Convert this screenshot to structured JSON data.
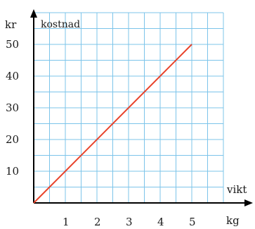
{
  "chart_data": {
    "type": "line",
    "title": "",
    "ylabel": "kostnad",
    "yunit": "kr",
    "xlabel": "vikt",
    "xunit": "kg",
    "xlim": [
      0,
      6.25
    ],
    "ylim": [
      0,
      60
    ],
    "x_ticks": [
      "1",
      "2",
      "3",
      "4",
      "5"
    ],
    "y_ticks": [
      "10",
      "20",
      "30",
      "40",
      "50"
    ],
    "grid": true,
    "series": [
      {
        "name": "",
        "x": [
          0,
          5
        ],
        "y": [
          0,
          50
        ]
      }
    ]
  },
  "colors": {
    "grid": "#7cc4ea",
    "line": "#e8422a",
    "axis": "#000000"
  }
}
